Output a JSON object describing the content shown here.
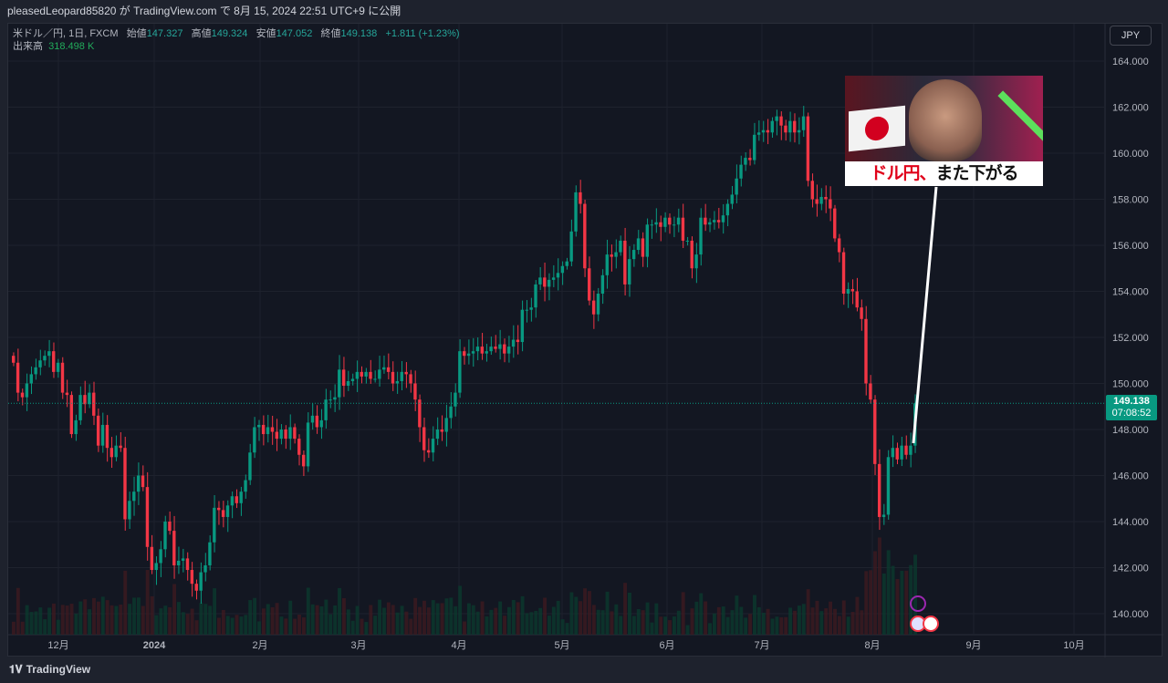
{
  "header": {
    "publish_line": "pleasedLeopard85820 が TradingView.com で 8月 15, 2024 22:51 UTC+9 に公開"
  },
  "legend": {
    "symbol": "米ドル／円, 1日, FXCM",
    "open_label": "始値",
    "open": "147.327",
    "high_label": "高値",
    "high": "149.324",
    "low_label": "安値",
    "low": "147.052",
    "close_label": "終値",
    "close": "149.138",
    "change": "+1.811 (+1.23%)",
    "volume_label": "出来高",
    "volume": "318.498 K"
  },
  "currency_button": "JPY",
  "last_price": {
    "price": "149.138",
    "countdown": "07:08:52"
  },
  "thumbnail": {
    "caption_red": "ドル円、",
    "caption_black": "また下がる"
  },
  "footer": {
    "brand": "TradingView"
  },
  "colors": {
    "up": "#089981",
    "down": "#f23645",
    "background": "#131722"
  },
  "chart_data": {
    "type": "candlestick",
    "ylim": [
      139.2,
      165.2
    ],
    "y_ticks": [
      "140.000",
      "142.000",
      "144.000",
      "146.000",
      "148.000",
      "150.000",
      "152.000",
      "154.000",
      "156.000",
      "158.000",
      "160.000",
      "162.000",
      "164.000"
    ],
    "x_ticks": [
      "12月",
      "2024",
      "2月",
      "3月",
      "4月",
      "5月",
      "6月",
      "7月",
      "8月",
      "9月",
      "10月"
    ],
    "closes": [
      150.9,
      149.6,
      149.4,
      150.0,
      150.4,
      150.7,
      151.0,
      151.2,
      151.4,
      150.5,
      150.9,
      149.6,
      149.5,
      147.8,
      148.4,
      149.5,
      149.1,
      149.6,
      148.6,
      147.3,
      148.2,
      147.2,
      146.8,
      147.3,
      147.2,
      144.1,
      144.9,
      145.3,
      146.0,
      145.5,
      142.9,
      141.9,
      142.2,
      142.8,
      144.0,
      143.6,
      142.1,
      142.3,
      142.4,
      141.9,
      141.3,
      141.0,
      141.8,
      142.1,
      143.1,
      144.6,
      144.5,
      144.2,
      144.7,
      145.1,
      144.8,
      145.3,
      145.8,
      147.0,
      148.1,
      148.2,
      147.8,
      148.1,
      147.9,
      147.6,
      148.0,
      147.6,
      148.1,
      147.6,
      146.9,
      146.4,
      148.3,
      148.6,
      148.1,
      148.4,
      149.3,
      149.3,
      149.4,
      150.6,
      149.9,
      150.1,
      150.2,
      150.5,
      150.3,
      150.5,
      150.2,
      150.2,
      150.6,
      150.7,
      150.5,
      150.0,
      150.1,
      150.5,
      150.4,
      150.0,
      149.3,
      148.1,
      147.1,
      147.0,
      147.6,
      148.0,
      147.9,
      148.5,
      149.0,
      149.6,
      151.4,
      151.2,
      151.3,
      151.4,
      151.6,
      151.3,
      151.4,
      151.6,
      151.5,
      151.7,
      151.3,
      151.6,
      151.9,
      151.8,
      153.2,
      153.2,
      153.3,
      154.3,
      154.6,
      154.2,
      154.5,
      154.6,
      154.8,
      155.1,
      155.3,
      156.6,
      158.3,
      157.8,
      155.0,
      153.6,
      153.0,
      153.9,
      154.7,
      155.6,
      155.5,
      155.7,
      156.2,
      154.3,
      155.4,
      155.8,
      156.3,
      155.5,
      156.9,
      156.9,
      157.0,
      156.8,
      157.2,
      156.9,
      156.9,
      157.2,
      156.2,
      156.2,
      155.0,
      155.6,
      157.2,
      156.9,
      157.0,
      157.1,
      157.0,
      157.3,
      157.8,
      158.2,
      158.9,
      159.5,
      159.8,
      159.7,
      160.8,
      160.9,
      161.0,
      160.9,
      161.4,
      161.6,
      161.2,
      160.9,
      161.4,
      160.9,
      161.0,
      161.6,
      158.8,
      158.0,
      157.8,
      158.1,
      158.0,
      157.6,
      156.3,
      155.7,
      153.9,
      154.1,
      154.0,
      153.3,
      152.8,
      150.0,
      149.3,
      146.5,
      144.2,
      144.3,
      146.8,
      147.2,
      146.7,
      147.3,
      146.9,
      147.3,
      149.138
    ],
    "last_price": 149.138
  }
}
